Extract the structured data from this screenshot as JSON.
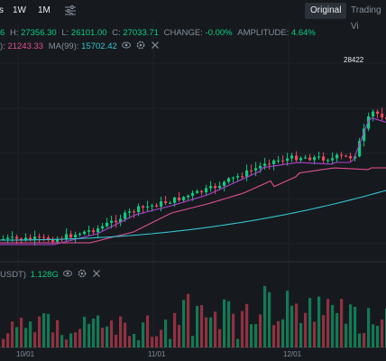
{
  "toolbar": {
    "timeframes": [
      "1W",
      "1M"
    ],
    "tabs": {
      "original": "Original",
      "tradingview": "Trading Vi"
    }
  },
  "ohlc": {
    "h_label": "H:",
    "h_value": "27356.30",
    "l_label": "L:",
    "l_value": "26101.00",
    "c_label": "C:",
    "c_value": "27033.71",
    "change_label": "CHANGE:",
    "change_value": "-0.00%",
    "amp_label": "AMPLITUDE:",
    "amp_value": "4.64%"
  },
  "ma": {
    "ma25_value": "21243.33",
    "ma99_label": "MA(99):",
    "ma99_value": "15702.42"
  },
  "volume": {
    "label": "USDT)",
    "value": "1.128G"
  },
  "price_high_label": "28422",
  "x_axis": [
    "10/01",
    "11/01",
    "12/01"
  ],
  "colors": {
    "up": "#0ecb81",
    "down": "#f6465d",
    "ma7": "#f0b90b",
    "ma25": "#e04e93",
    "ma99": "#36c2d0",
    "bg": "#161a1e"
  }
}
